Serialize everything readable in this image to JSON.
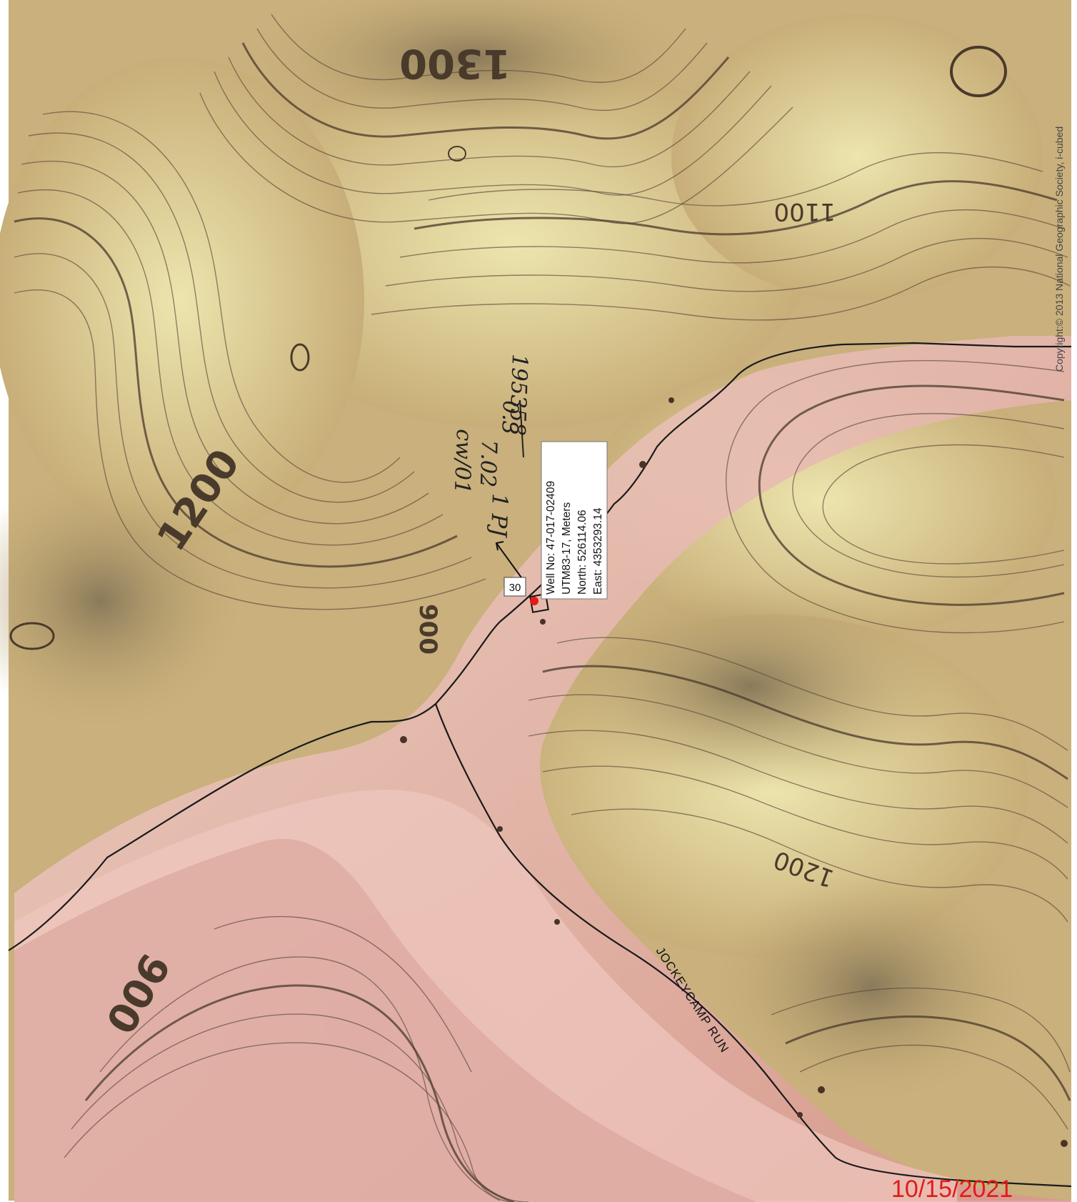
{
  "map": {
    "copyright": "Copyright:© 2013 National Geographic Society, i-cubed",
    "date_stamp": "10/15/2021",
    "creek_name": "JOCKEYCAMP RUN",
    "contour_labels": [
      "1300",
      "1100",
      "1200",
      "900",
      "900",
      "1200"
    ],
    "well_info": {
      "line1": "Well No: 47-017-02409",
      "line2": "UTM83-17, Meters",
      "line3": "North: 526114.06",
      "line4": "East: 4353293.14"
    },
    "distance_marker": "30",
    "handwritten": {
      "lines": [
        "195358",
        "0.3",
        "7.02",
        "cw/01",
        "1 PJ"
      ]
    },
    "colors": {
      "terrain_tan": "#cdb783",
      "terrain_light": "#e8e0a8",
      "terrain_dark": "#8c7a55",
      "valley_pink": "#e5a5a0",
      "well_dot": "#e41a1a",
      "date_red": "#e41a1a"
    },
    "icons": {
      "well_marker": "red-dot-icon",
      "direction_arrow": "arrow-icon"
    }
  }
}
